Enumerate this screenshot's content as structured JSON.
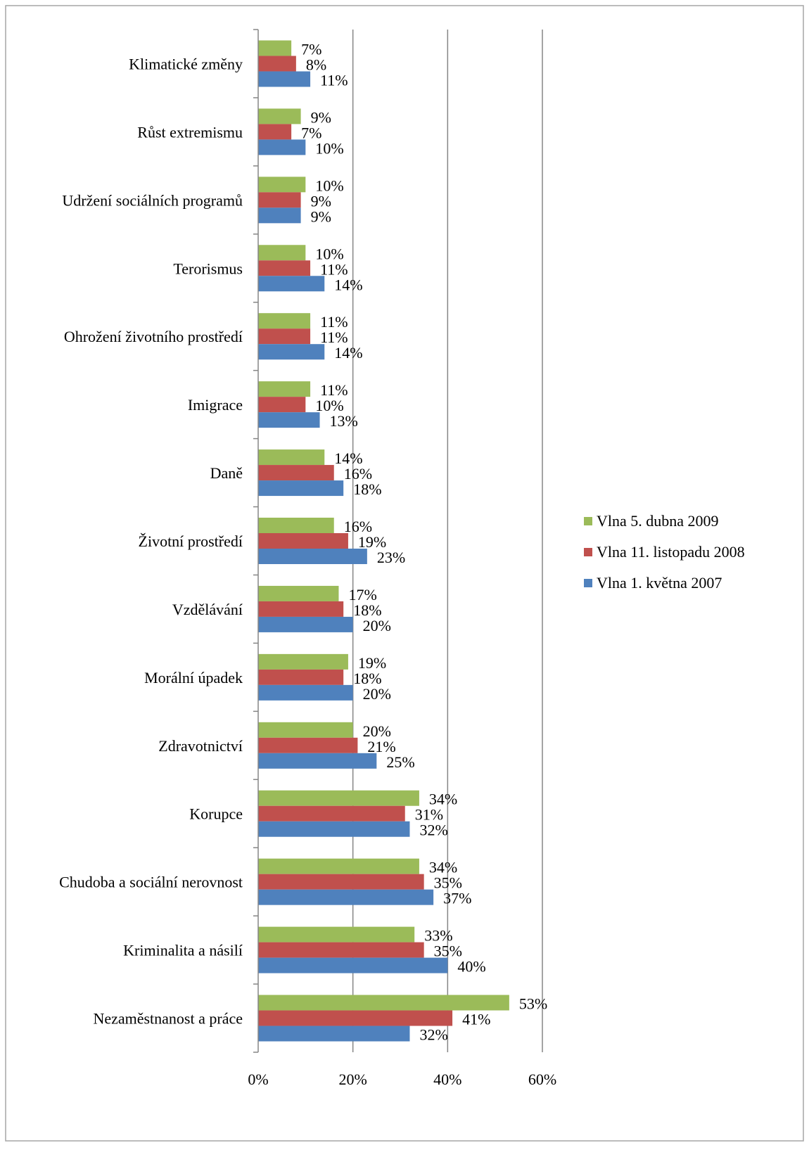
{
  "chart_data": {
    "type": "bar",
    "orientation": "horizontal",
    "title": "",
    "xlabel": "",
    "ylabel": "",
    "xlim": [
      0,
      60
    ],
    "x_ticks": [
      "0%",
      "20%",
      "40%",
      "60%"
    ],
    "grid": "vertical major gridlines",
    "legend_position": "right",
    "categories": [
      "Klimatické změny",
      "Růst extremismu",
      "Udržení sociálních programů",
      "Terorismus",
      "Ohrožení životního prostředí",
      "Imigrace",
      "Daně",
      "Životní prostředí",
      "Vzdělávání",
      "Morální úpadek",
      "Zdravotnictví",
      "Korupce",
      "Chudoba a sociální nerovnost",
      "Kriminalita a násilí",
      "Nezaměstnanost a práce"
    ],
    "series": [
      {
        "name": "Vlna 5. dubna 2009",
        "color": "#9BBB59",
        "values": [
          7,
          9,
          10,
          10,
          11,
          11,
          14,
          16,
          17,
          19,
          20,
          34,
          34,
          33,
          53
        ],
        "labels": [
          "7%",
          "9%",
          "10%",
          "10%",
          "11%",
          "11%",
          "14%",
          "16%",
          "17%",
          "19%",
          "20%",
          "34%",
          "34%",
          "33%",
          "53%"
        ]
      },
      {
        "name": "Vlna 11. listopadu 2008",
        "color": "#C0504D",
        "values": [
          8,
          7,
          9,
          11,
          11,
          10,
          16,
          19,
          18,
          18,
          21,
          31,
          35,
          35,
          41
        ],
        "labels": [
          "8%",
          "7%",
          "9%",
          "11%",
          "11%",
          "10%",
          "16%",
          "19%",
          "18%",
          "18%",
          "21%",
          "31%",
          "35%",
          "35%",
          "41%"
        ]
      },
      {
        "name": "Vlna 1. května 2007",
        "color": "#4F81BD",
        "values": [
          11,
          10,
          9,
          14,
          14,
          13,
          18,
          23,
          20,
          20,
          25,
          32,
          37,
          40,
          32
        ],
        "labels": [
          "11%",
          "10%",
          "9%",
          "14%",
          "14%",
          "13%",
          "18%",
          "23%",
          "20%",
          "20%",
          "25%",
          "32%",
          "37%",
          "40%",
          "32%"
        ]
      }
    ]
  }
}
